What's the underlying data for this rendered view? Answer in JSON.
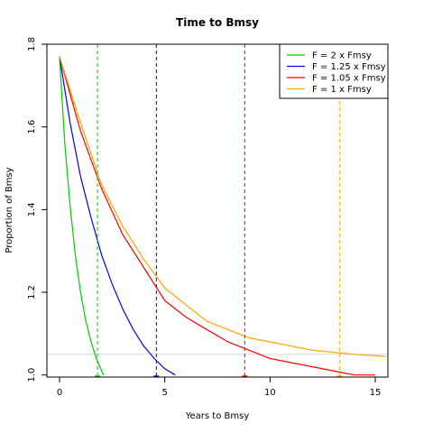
{
  "chart_data": {
    "type": "line",
    "title": "Time to Bmsy",
    "xlabel": "Years to Bmsy",
    "ylabel": "Proportion of Bmsy",
    "xlim": [
      -0.6,
      15.6
    ],
    "ylim": [
      0.995,
      1.8
    ],
    "xticks": [
      0,
      5,
      10,
      15
    ],
    "xtick_labels": [
      "0",
      "5",
      "10",
      "15"
    ],
    "yticks": [
      1.0,
      1.2,
      1.4,
      1.6,
      1.8
    ],
    "ytick_labels": [
      "1.0",
      "1.2",
      "1.4",
      "1.6",
      "1.8"
    ],
    "reference_line_y": 1.05,
    "reference_line_color": "#d9d9d9",
    "legend_position": "top-right",
    "series": [
      {
        "name": "F = 2 x Fmsy",
        "color": "#00cc00",
        "x": [
          0,
          0.25,
          0.5,
          0.75,
          1.0,
          1.25,
          1.5,
          1.75,
          2.0,
          2.1
        ],
        "y": [
          1.77,
          1.56,
          1.41,
          1.29,
          1.2,
          1.13,
          1.08,
          1.04,
          1.01,
          1.0
        ],
        "time_to_bmsy": 1.8
      },
      {
        "name": "F = 1.25 x Fmsy",
        "color": "#0000ff",
        "x": [
          0,
          0.5,
          1.0,
          1.5,
          2.0,
          2.5,
          3.0,
          3.5,
          4.0,
          4.5,
          5.0,
          5.5
        ],
        "y": [
          1.77,
          1.61,
          1.48,
          1.38,
          1.29,
          1.22,
          1.16,
          1.11,
          1.07,
          1.04,
          1.015,
          1.0
        ],
        "time_to_bmsy": 4.6
      },
      {
        "name": "F = 1.05 x Fmsy",
        "color": "#ff0000",
        "x": [
          0,
          1,
          2,
          3,
          4,
          5,
          6,
          7,
          8,
          9,
          10,
          11,
          12,
          13,
          14,
          15
        ],
        "y": [
          1.77,
          1.59,
          1.45,
          1.34,
          1.26,
          1.18,
          1.14,
          1.11,
          1.08,
          1.06,
          1.04,
          1.03,
          1.02,
          1.01,
          1.0,
          1.0
        ],
        "time_to_bmsy": 8.8
      },
      {
        "name": "F = 1 x Fmsy",
        "color": "#ffa500",
        "x": [
          0,
          1,
          2,
          3,
          4,
          5,
          6,
          7,
          8,
          9,
          10,
          11,
          12,
          13,
          14,
          15.5
        ],
        "y": [
          1.77,
          1.61,
          1.46,
          1.36,
          1.28,
          1.21,
          1.17,
          1.13,
          1.11,
          1.09,
          1.08,
          1.07,
          1.06,
          1.055,
          1.05,
          1.045
        ],
        "time_to_bmsy": 13.3
      }
    ]
  }
}
